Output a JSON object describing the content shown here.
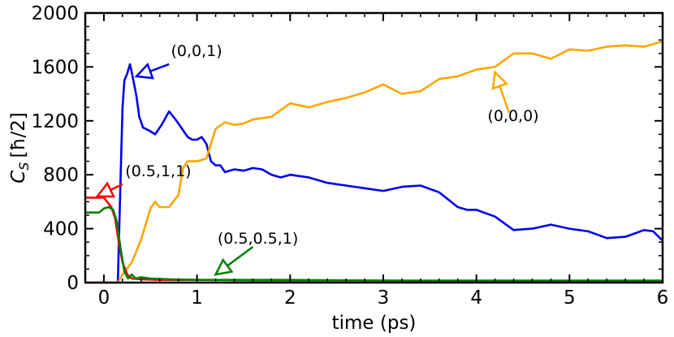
{
  "chart_data": {
    "type": "line",
    "title": "",
    "xlabel": "time (ps)",
    "ylabel": "C_S [ħ/2]",
    "ylabel_parts": {
      "symbol": "C",
      "subscript": "S",
      "unit": "[ħ/2]"
    },
    "xlim": [
      -0.2,
      6.0
    ],
    "ylim": [
      0,
      2000
    ],
    "xticks": [
      0,
      1,
      2,
      3,
      4,
      5,
      6
    ],
    "yticks": [
      0,
      400,
      800,
      1200,
      1600,
      2000
    ],
    "xtick_labels": [
      "0",
      "1",
      "2",
      "3",
      "4",
      "5",
      "6"
    ],
    "ytick_labels": [
      "0",
      "400",
      "800",
      "1200",
      "1600",
      "2000"
    ],
    "grid": false,
    "legend": "none",
    "series": [
      {
        "label": "(0,0,1)",
        "color": "#0000ee",
        "x": [
          -0.2,
          0.15,
          0.18,
          0.2,
          0.22,
          0.25,
          0.28,
          0.3,
          0.35,
          0.38,
          0.42,
          0.48,
          0.55,
          0.62,
          0.7,
          0.78,
          0.85,
          0.9,
          0.95,
          1.0,
          1.05,
          1.1,
          1.15,
          1.2,
          1.25,
          1.3,
          1.4,
          1.5,
          1.6,
          1.7,
          1.8,
          1.9,
          2.0,
          2.2,
          2.4,
          2.6,
          2.8,
          3.0,
          3.2,
          3.4,
          3.6,
          3.8,
          3.9,
          4.0,
          4.2,
          4.4,
          4.6,
          4.8,
          5.0,
          5.2,
          5.4,
          5.6,
          5.8,
          5.9,
          6.0
        ],
        "y": [
          0,
          0,
          800,
          1300,
          1500,
          1550,
          1620,
          1560,
          1380,
          1230,
          1150,
          1130,
          1100,
          1170,
          1270,
          1200,
          1130,
          1080,
          1060,
          1060,
          1080,
          1030,
          900,
          870,
          870,
          820,
          840,
          830,
          850,
          840,
          800,
          780,
          800,
          780,
          740,
          720,
          700,
          680,
          710,
          720,
          670,
          560,
          540,
          540,
          490,
          390,
          400,
          430,
          400,
          380,
          330,
          340,
          390,
          380,
          310
        ]
      },
      {
        "label": "(0,0,0)",
        "color": "#ffa500",
        "x": [
          -0.2,
          0.15,
          0.2,
          0.3,
          0.4,
          0.5,
          0.55,
          0.6,
          0.7,
          0.8,
          0.85,
          0.9,
          1.0,
          1.1,
          1.2,
          1.3,
          1.4,
          1.5,
          1.6,
          1.8,
          2.0,
          2.2,
          2.4,
          2.6,
          2.8,
          3.0,
          3.2,
          3.4,
          3.6,
          3.8,
          4.0,
          4.2,
          4.4,
          4.6,
          4.8,
          5.0,
          5.2,
          5.4,
          5.6,
          5.8,
          6.0
        ],
        "y": [
          0,
          0,
          60,
          150,
          320,
          550,
          600,
          560,
          560,
          650,
          850,
          900,
          900,
          920,
          1140,
          1190,
          1170,
          1180,
          1210,
          1230,
          1330,
          1300,
          1340,
          1370,
          1410,
          1470,
          1400,
          1420,
          1510,
          1530,
          1580,
          1600,
          1700,
          1700,
          1660,
          1730,
          1720,
          1750,
          1760,
          1750,
          1790
        ]
      },
      {
        "label": "(0.5,1,1)",
        "color": "#ff0000",
        "x": [
          -0.2,
          0.0,
          0.08,
          0.12,
          0.16,
          0.2,
          0.25,
          0.3,
          0.4,
          0.6,
          1.0,
          2.0,
          3.0,
          4.0,
          5.0,
          6.0
        ],
        "y": [
          630,
          630,
          560,
          480,
          300,
          150,
          60,
          30,
          25,
          20,
          20,
          15,
          15,
          10,
          10,
          10
        ]
      },
      {
        "label": "(0.5,0.5,1)",
        "color": "#008000",
        "x": [
          -0.2,
          -0.05,
          0.0,
          0.05,
          0.1,
          0.14,
          0.18,
          0.22,
          0.26,
          0.3,
          0.34,
          0.4,
          0.5,
          0.7,
          1.0,
          1.5,
          2.0,
          3.0,
          4.0,
          5.0,
          6.0
        ],
        "y": [
          520,
          520,
          550,
          560,
          540,
          450,
          250,
          80,
          30,
          60,
          30,
          40,
          30,
          25,
          20,
          20,
          20,
          15,
          15,
          15,
          15
        ]
      }
    ],
    "annotations": [
      {
        "text": "(0,0,1)",
        "color": "#0000ee",
        "text_x": 0.72,
        "text_y": 1680,
        "arrow_from": [
          0.7,
          1620
        ],
        "arrow_to": [
          0.35,
          1530
        ]
      },
      {
        "text": "(0,0,0)",
        "color": "#ffa500",
        "text_x": 4.12,
        "text_y": 1200,
        "arrow_from": [
          4.35,
          1260
        ],
        "arrow_to": [
          4.2,
          1560
        ]
      },
      {
        "text": "(0.5,1,1)",
        "color": "#ff0000",
        "text_x": 0.23,
        "text_y": 790,
        "arrow_from": [
          0.2,
          730
        ],
        "arrow_to": [
          -0.07,
          640
        ]
      },
      {
        "text": "(0.5,0.5,1)",
        "color": "#008000",
        "text_x": 1.22,
        "text_y": 290,
        "arrow_from": [
          1.6,
          265
        ],
        "arrow_to": [
          1.2,
          60
        ]
      }
    ]
  }
}
